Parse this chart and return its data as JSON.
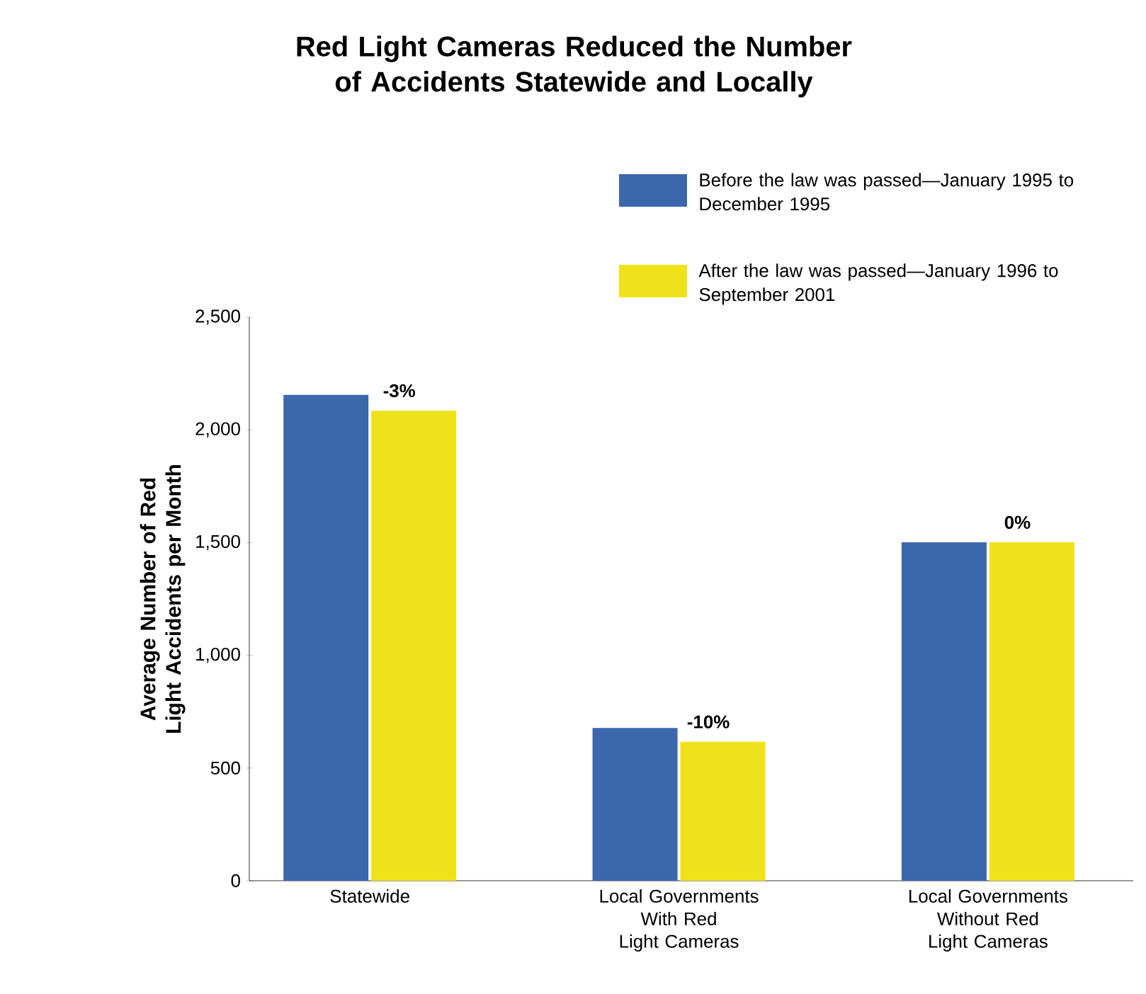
{
  "chart_data": {
    "type": "bar",
    "title": "Red Light Cameras Reduced the Number of Accidents Statewide and Locally",
    "ylabel": "Average Number of Red Light Accidents per Month",
    "categories": [
      "Statewide",
      "Local Governments With Red Light Cameras",
      "Local Governments Without Red Light Cameras"
    ],
    "series": [
      {
        "name": "Before the law was passed—January 1995 to December 1995",
        "color": "#3b67ad",
        "values": [
          2155,
          678,
          1501
        ]
      },
      {
        "name": "After the law was passed—January 1996 to September 2001",
        "color": "#f0e21a",
        "values": [
          2085,
          616,
          1501
        ]
      }
    ],
    "annotations": [
      {
        "text": "-3%",
        "x": "Statewide",
        "y": 2085
      },
      {
        "text": "-10%",
        "x": "Local Governments With Red Light Cameras",
        "y": 616
      },
      {
        "text": "0%",
        "x": "Local Governments Without Red Light Cameras",
        "y": 1501
      }
    ],
    "ylim": [
      0,
      2500
    ],
    "yticks": [
      0,
      500,
      {
        "value": 1000,
        "label": "1,000"
      },
      {
        "value": 1500,
        "label": "1,500"
      },
      {
        "value": 2000,
        "label": "2,000"
      },
      {
        "value": 2500,
        "label": "2,500"
      }
    ],
    "grid": false,
    "legend": "top right"
  }
}
